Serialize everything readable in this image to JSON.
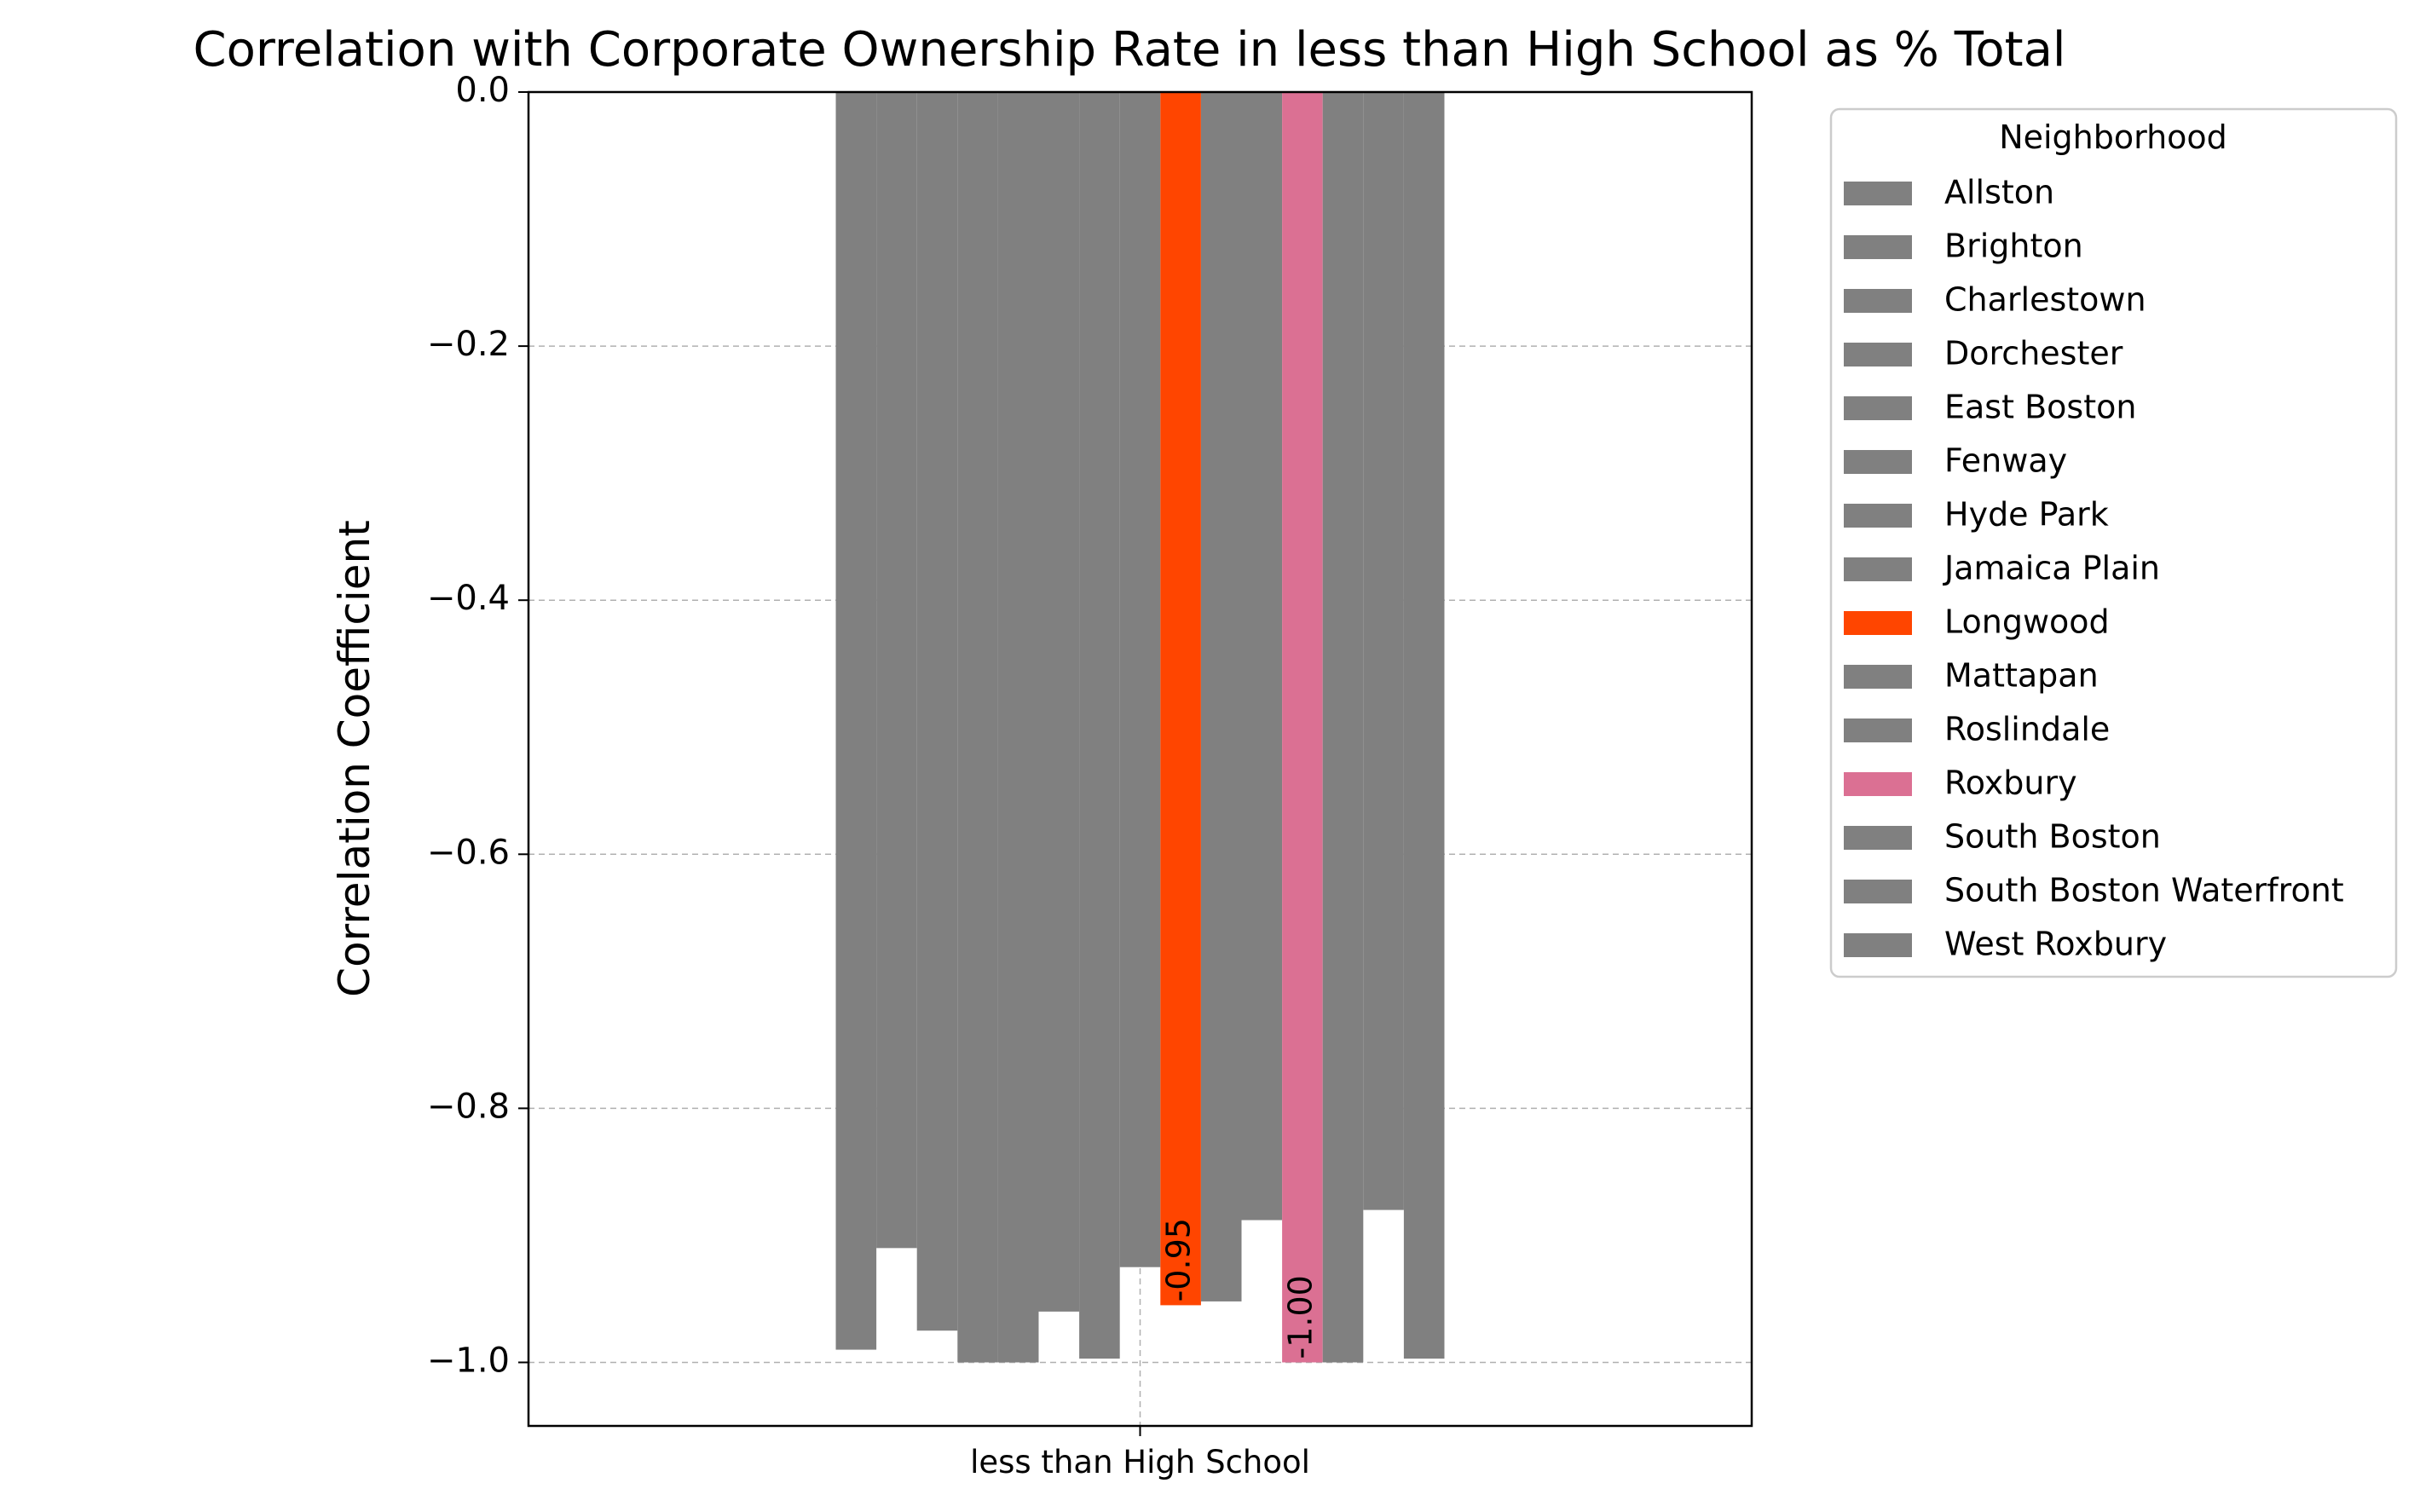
{
  "chart_data": {
    "type": "bar",
    "title": "Correlation with Corporate Ownership Rate in less than High School as % Total",
    "xlabel": "",
    "ylabel": "Correlation Coefficient",
    "categories": [
      "less than High School"
    ],
    "ylim": [
      -1.05,
      0.0
    ],
    "yticks": [
      0.0,
      -0.2,
      -0.4,
      -0.6,
      -0.8,
      -1.0
    ],
    "ytick_labels": [
      "0.0",
      "−0.2",
      "−0.4",
      "−0.6",
      "−0.8",
      "−1.0"
    ],
    "grid": true,
    "legend_title": "Neighborhood",
    "legend_position": "outside-right",
    "series": [
      {
        "name": "Allston",
        "value": -0.99,
        "color": "#808080",
        "label": ""
      },
      {
        "name": "Brighton",
        "value": -0.91,
        "color": "#808080",
        "label": ""
      },
      {
        "name": "Charlestown",
        "value": -0.975,
        "color": "#808080",
        "label": ""
      },
      {
        "name": "Dorchester",
        "value": -1.0,
        "color": "#808080",
        "label": ""
      },
      {
        "name": "East Boston",
        "value": -1.0,
        "color": "#808080",
        "label": ""
      },
      {
        "name": "Fenway",
        "value": -0.96,
        "color": "#808080",
        "label": ""
      },
      {
        "name": "Hyde Park",
        "value": -0.997,
        "color": "#808080",
        "label": ""
      },
      {
        "name": "Jamaica Plain",
        "value": -0.925,
        "color": "#808080",
        "label": ""
      },
      {
        "name": "Longwood",
        "value": -0.955,
        "color": "#FF4500",
        "label": "-0.95"
      },
      {
        "name": "Mattapan",
        "value": -0.952,
        "color": "#808080",
        "label": ""
      },
      {
        "name": "Roslindale",
        "value": -0.888,
        "color": "#808080",
        "label": ""
      },
      {
        "name": "Roxbury",
        "value": -1.0,
        "color": "#DB7093",
        "label": "-1.00"
      },
      {
        "name": "South Boston",
        "value": -1.0,
        "color": "#808080",
        "label": ""
      },
      {
        "name": "South Boston Waterfront",
        "value": -0.88,
        "color": "#808080",
        "label": ""
      },
      {
        "name": "West Roxbury",
        "value": -0.997,
        "color": "#808080",
        "label": ""
      }
    ]
  }
}
